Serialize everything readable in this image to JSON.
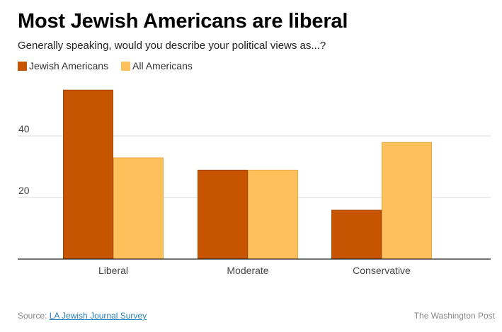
{
  "chart_data": {
    "type": "bar",
    "title": "Most Jewish Americans are liberal",
    "subtitle": "Generally speaking, would you describe your political views as...?",
    "categories": [
      "Liberal",
      "Moderate",
      "Conservative"
    ],
    "series": [
      {
        "name": "Jewish Americans",
        "color": "#c75400",
        "values": [
          55,
          29,
          16
        ]
      },
      {
        "name": "All Americans",
        "color": "#fdc05d",
        "values": [
          33,
          29,
          38
        ]
      }
    ],
    "xlabel": "",
    "ylabel": "",
    "ylim": [
      0,
      60
    ],
    "yticks": [
      20,
      40
    ],
    "grid": true,
    "legend": "top-left"
  },
  "footer": {
    "source_label": "Source:",
    "source_link": "LA Jewish Journal Survey",
    "credit": "The Washington Post"
  }
}
